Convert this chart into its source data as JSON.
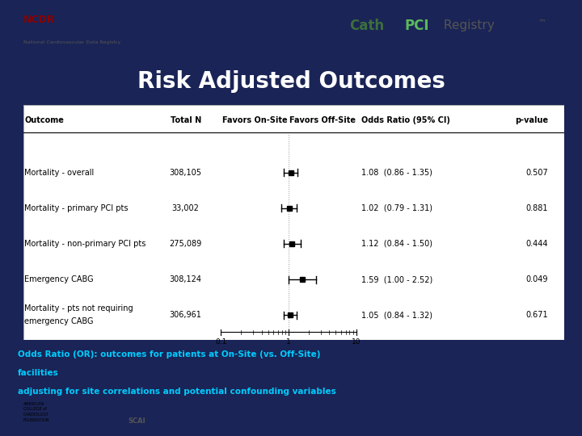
{
  "title": "Risk Adjusted Outcomes",
  "bg_color": "#1a2456",
  "top_bar_color": "#ffffff",
  "table_bg": "#ffffff",
  "header_cols": [
    "Outcome",
    "Total N",
    "Favors On-Site",
    "Favors Off-Site",
    "Odds Ratio (95% CI)",
    "p-value"
  ],
  "rows": [
    {
      "outcome": "Mortality - overall",
      "total_n": "308,105",
      "or": 1.08,
      "ci_low": 0.86,
      "ci_high": 1.35,
      "or_text": "1.08  (0.86 - 1.35)",
      "pval": "0.507"
    },
    {
      "outcome": "Mortality - primary PCI pts",
      "total_n": "33,002",
      "or": 1.02,
      "ci_low": 0.79,
      "ci_high": 1.31,
      "or_text": "1.02  (0.79 - 1.31)",
      "pval": "0.881"
    },
    {
      "outcome": "Mortality - non-primary PCI pts",
      "total_n": "275,089",
      "or": 1.12,
      "ci_low": 0.84,
      "ci_high": 1.5,
      "or_text": "1.12  (0.84 - 1.50)",
      "pval": "0.444"
    },
    {
      "outcome": "Emergency CABG",
      "total_n": "308,124",
      "or": 1.59,
      "ci_low": 1.0,
      "ci_high": 2.52,
      "or_text": "1.59  (1.00 - 2.52)",
      "pval": "0.049"
    },
    {
      "outcome": "Mortality - pts not requiring\nemergency CABG",
      "total_n": "306,961",
      "or": 1.05,
      "ci_low": 0.84,
      "ci_high": 1.32,
      "or_text": "1.05  (0.84 - 1.32)",
      "pval": "0.671"
    }
  ],
  "footer_line1": "Odds Ratio (OR): outcomes for patients at On-Site (vs. Off-Site)",
  "footer_line2": "facilities",
  "footer_line3": "adjusting for site correlations and potential confounding variables",
  "footer_color": "#00ccff",
  "xmin": 0.1,
  "xmax": 10.0,
  "xticks": [
    0.1,
    1,
    10
  ],
  "xticklabels": [
    "0.1",
    "1",
    "10"
  ],
  "ref_line": 1.0,
  "cath_color": "#3d7a3d",
  "pci_color": "#5cb85c",
  "bottom_bar_color": "#d0d0d0"
}
